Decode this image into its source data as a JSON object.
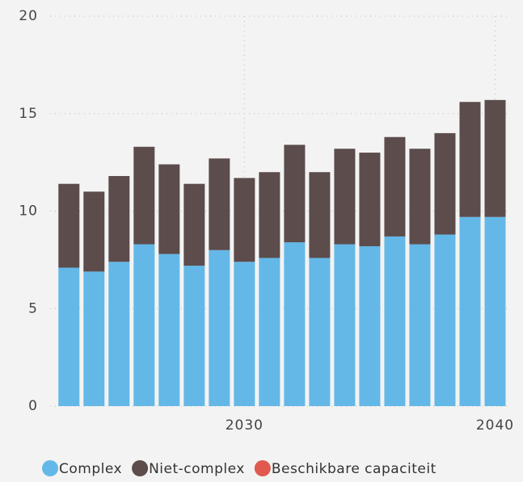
{
  "chart_data": {
    "type": "stacked_bar",
    "x": [
      2023,
      2024,
      2025,
      2026,
      2027,
      2028,
      2029,
      2030,
      2031,
      2032,
      2033,
      2034,
      2035,
      2036,
      2037,
      2038,
      2039,
      2040
    ],
    "series": [
      {
        "name": "Complex",
        "color": "#63b8e8",
        "values": [
          7.1,
          6.9,
          7.4,
          8.3,
          7.8,
          7.2,
          8.0,
          7.4,
          7.6,
          8.4,
          7.6,
          8.3,
          8.2,
          8.7,
          8.3,
          8.8,
          9.7,
          9.7
        ]
      },
      {
        "name": "Niet-complex",
        "color": "#5c4c4c",
        "values": [
          4.3,
          4.1,
          4.4,
          5.0,
          4.6,
          4.2,
          4.7,
          4.3,
          4.4,
          5.0,
          4.4,
          4.9,
          4.8,
          5.1,
          4.9,
          5.2,
          5.9,
          6.0
        ]
      },
      {
        "name": "Beschikbare capaciteit",
        "color": "#e0594f",
        "values": [
          0,
          0,
          0,
          0,
          0,
          0,
          0,
          0,
          0,
          0,
          0,
          0,
          0,
          0,
          0,
          0,
          0,
          0
        ]
      }
    ],
    "xlim": [
      2022.25,
      2040.5
    ],
    "xticks": [
      2030,
      2040
    ],
    "ylim": [
      0,
      20
    ],
    "yticks": [
      0,
      5,
      10,
      15,
      20
    ],
    "grid": true
  }
}
